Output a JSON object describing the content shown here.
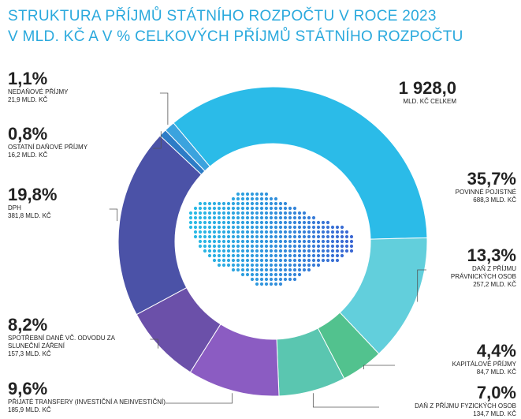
{
  "chart_data": {
    "type": "donut",
    "title": "STRUKTURA PŘÍJMŮ STÁTNÍHO ROZPOČTU V ROCE 2023",
    "subtitle": "V MLD. KČ A V % CELKOVÝCH PŘÍJMŮ STÁTNÍHO ROZPOČTU",
    "total_label": "1 928,0",
    "total_caption": "MLD. KČ CELKEM",
    "categories": [
      "POVINNÉ POJISTNÉ",
      "DAŇ Z PŘÍJMU PRÁVNICKÝCH OSOB",
      "KAPITÁLOVÉ PŘÍJMY",
      "DAŇ Z PŘÍJMU FYZICKÝCH OSOB",
      "PŘIJATÉ TRANSFERY (INVESTIČNÍ A NEINVESTIČNÍ)",
      "SPOTŘEBNÍ DANĚ VČ. ODVODU ZA SLUNEČNÍ ZÁŘENÍ",
      "DPH",
      "OSTATNÍ DAŇOVÉ PŘÍJMY",
      "NEDAŇOVÉ PŘÍJMY"
    ],
    "values": [
      35.7,
      13.3,
      4.4,
      7.0,
      9.6,
      8.2,
      19.8,
      0.8,
      1.1
    ],
    "value_labels": [
      "35,7%",
      "13,3%",
      "4,4%",
      "7,0%",
      "9,6%",
      "8,2%",
      "19,8%",
      "0,8%",
      "1,1%"
    ],
    "amount_labels": [
      "688,3 MLD. KČ",
      "257,2 MLD. KČ",
      "84,7 MLD. KČ",
      "134,7 MLD. KČ",
      "185,9 MLD. KČ",
      "157,3 MLD. KČ",
      "381,8 MLD. KČ",
      "16,2 MLD. KČ",
      "21,9 MLD. KČ"
    ],
    "colors": [
      "#2bbbe8",
      "#62cfdc",
      "#52c28e",
      "#5ac6b0",
      "#8b5cc2",
      "#6b50a9",
      "#4b52a7",
      "#2d7cc6",
      "#3ba3de"
    ]
  }
}
